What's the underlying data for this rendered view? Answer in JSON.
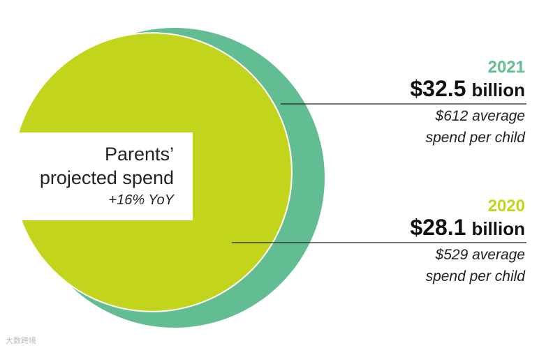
{
  "chart_data": {
    "type": "bubble",
    "title": "Parents’ projected spend",
    "subtitle": "+16% YoY",
    "series": [
      {
        "year": "2021",
        "value": 32.5,
        "amount_label": "$32.5",
        "unit_label": "billion",
        "note_line1": "$612 average",
        "note_line2": "spend per child",
        "color": "#63BD93",
        "year_color": "#63BD93"
      },
      {
        "year": "2020",
        "value": 28.1,
        "amount_label": "$28.1",
        "unit_label": "billion",
        "note_line1": "$529 average",
        "note_line2": "spend per child",
        "color": "#C3D41C",
        "year_color": "#C3D41C"
      }
    ]
  },
  "watermark": "大数跨境"
}
